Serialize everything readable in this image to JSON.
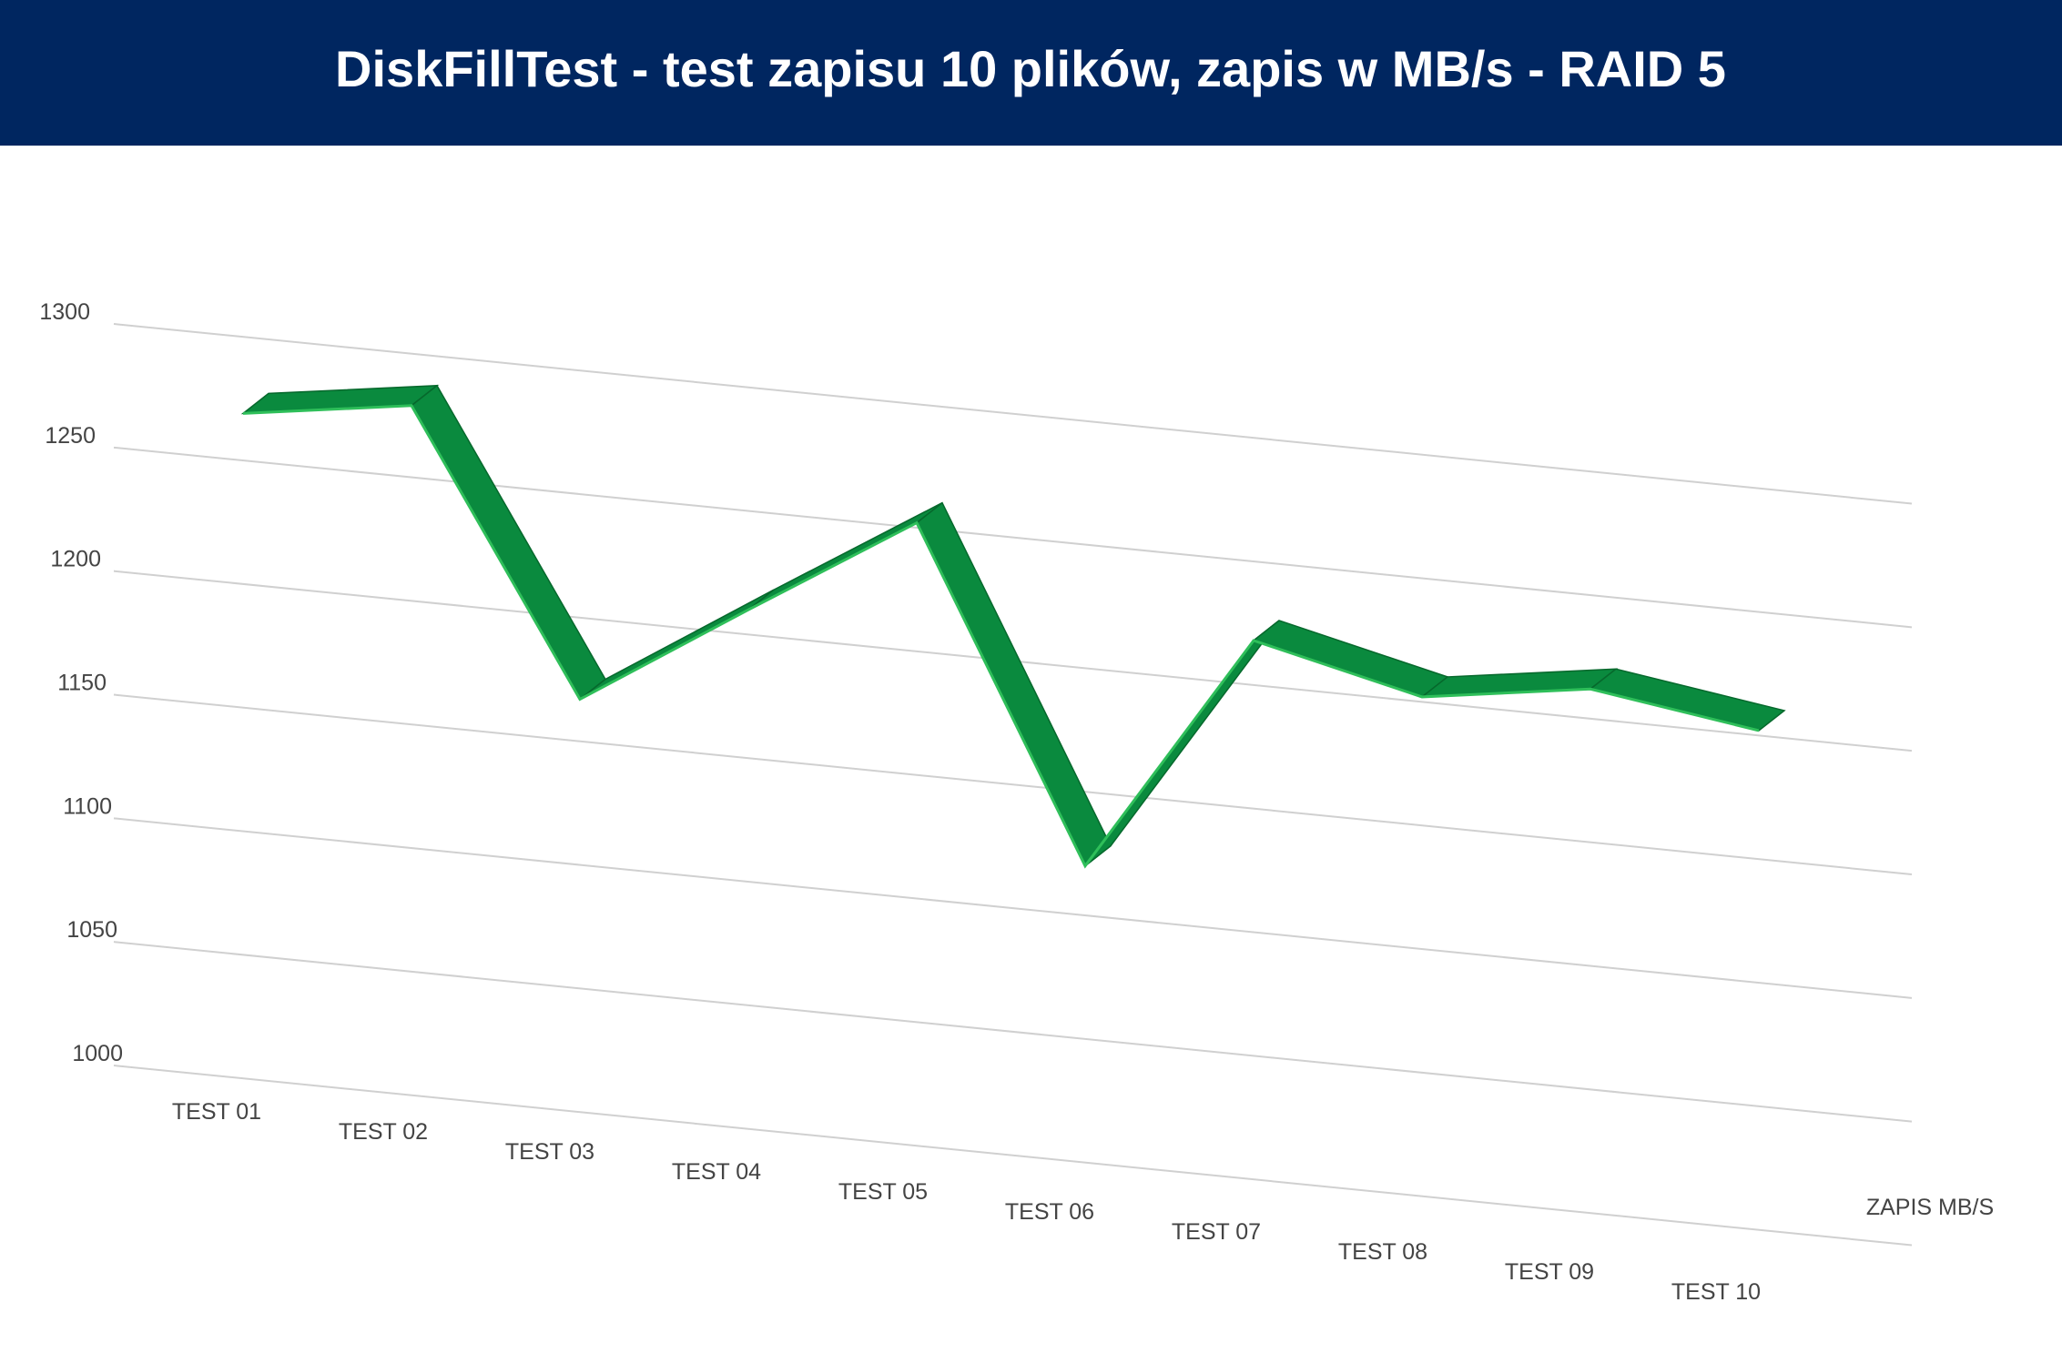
{
  "chart_data": {
    "type": "line3d",
    "title": "DiskFillTest - test zapisu 10 plików, zapis w MB/s - RAID 5",
    "categories": [
      "TEST 01",
      "TEST 02",
      "TEST 03",
      "TEST 04",
      "TEST 05",
      "TEST 06",
      "TEST 07",
      "TEST 08",
      "TEST 09",
      "TEST 10"
    ],
    "series": [
      {
        "name": "ZAPIS MB/S",
        "color": "#0a8a3e",
        "values": [
          1269,
          1279,
          1167,
          1210,
          1252,
          1120,
          1218,
          1202,
          1212,
          1202
        ]
      }
    ],
    "ylim": [
      1000,
      1300
    ],
    "yticks": [
      1000,
      1050,
      1100,
      1150,
      1200,
      1250,
      1300
    ],
    "grid": true
  }
}
